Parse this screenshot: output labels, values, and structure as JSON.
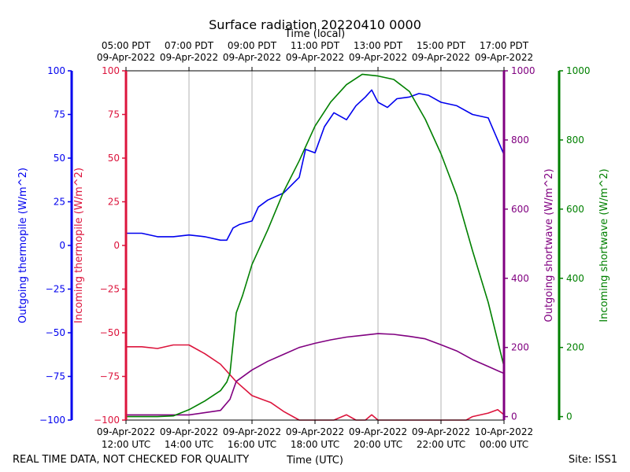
{
  "chart_data": {
    "type": "line",
    "title": "Surface radiation 20220410 0000",
    "top_xlabel": "Time (local)",
    "xlabel": "Time (UTC)",
    "footer_left": "REAL TIME DATA, NOT CHECKED FOR QUALITY",
    "footer_right": "Site: ISS1",
    "xlim": [
      12,
      24
    ],
    "grid": "vertical",
    "bottom_ticks": [
      {
        "x": 12,
        "line1": "09-Apr-2022",
        "line2": "12:00 UTC"
      },
      {
        "x": 14,
        "line1": "09-Apr-2022",
        "line2": "14:00 UTC"
      },
      {
        "x": 16,
        "line1": "09-Apr-2022",
        "line2": "16:00 UTC"
      },
      {
        "x": 18,
        "line1": "09-Apr-2022",
        "line2": "18:00 UTC"
      },
      {
        "x": 20,
        "line1": "09-Apr-2022",
        "line2": "20:00 UTC"
      },
      {
        "x": 22,
        "line1": "09-Apr-2022",
        "line2": "22:00 UTC"
      },
      {
        "x": 24,
        "line1": "10-Apr-2022",
        "line2": "00:00 UTC"
      }
    ],
    "top_ticks": [
      {
        "x": 12,
        "line1": "05:00 PDT",
        "line2": "09-Apr-2022"
      },
      {
        "x": 14,
        "line1": "07:00 PDT",
        "line2": "09-Apr-2022"
      },
      {
        "x": 16,
        "line1": "09:00 PDT",
        "line2": "09-Apr-2022"
      },
      {
        "x": 18,
        "line1": "11:00 PDT",
        "line2": "09-Apr-2022"
      },
      {
        "x": 20,
        "line1": "13:00 PDT",
        "line2": "09-Apr-2022"
      },
      {
        "x": 22,
        "line1": "15:00 PDT",
        "line2": "09-Apr-2022"
      },
      {
        "x": 24,
        "line1": "17:00 PDT",
        "line2": "09-Apr-2022"
      }
    ],
    "axes": [
      {
        "id": "outgoing_thermopile",
        "label": "Outgoing thermopile (W/m^2)",
        "color": "#0000ee",
        "ylim": [
          -100,
          100
        ],
        "ticks": [
          -100,
          -75,
          -50,
          -25,
          0,
          25,
          50,
          75,
          100
        ],
        "side": "left-outer"
      },
      {
        "id": "incoming_thermopile",
        "label": "Incoming thermopile (W/m^2)",
        "color": "#dc143c",
        "ylim": [
          -100,
          100
        ],
        "ticks": [
          -100,
          -75,
          -50,
          -25,
          0,
          25,
          50,
          75,
          100
        ],
        "side": "left-inner"
      },
      {
        "id": "outgoing_shortwave",
        "label": "Outgoing shortwave (W/m^2)",
        "color": "#800080",
        "ylim": [
          -10,
          1000
        ],
        "ticks": [
          0,
          200,
          400,
          600,
          800,
          1000
        ],
        "side": "right-inner"
      },
      {
        "id": "incoming_shortwave",
        "label": "Incoming shortwave (W/m^2)",
        "color": "#008000",
        "ylim": [
          -10,
          1000
        ],
        "ticks": [
          0,
          200,
          400,
          600,
          800,
          1000
        ],
        "side": "right-outer"
      }
    ],
    "series": [
      {
        "name": "Outgoing thermopile",
        "axis": "outgoing_thermopile",
        "color": "#0000ee",
        "x": [
          12,
          12.5,
          13,
          13.5,
          14,
          14.5,
          15,
          15.2,
          15.4,
          15.6,
          16,
          16.2,
          16.5,
          17,
          17.5,
          17.7,
          18,
          18.3,
          18.6,
          19,
          19.3,
          19.6,
          19.8,
          20,
          20.3,
          20.6,
          21,
          21.3,
          21.6,
          22,
          22.5,
          23,
          23.5,
          24
        ],
        "values": [
          7,
          7,
          5,
          5,
          6,
          5,
          3,
          3,
          10,
          12,
          14,
          22,
          26,
          30,
          39,
          55,
          53,
          68,
          76,
          72,
          80,
          85,
          89,
          82,
          79,
          84,
          85,
          87,
          86,
          82,
          80,
          75,
          73,
          52
        ]
      },
      {
        "name": "Incoming thermopile",
        "axis": "incoming_thermopile",
        "color": "#dc143c",
        "x": [
          12,
          12.5,
          13,
          13.5,
          14,
          14.5,
          15,
          15.5,
          16,
          16.3,
          16.6,
          17,
          17.5,
          17.8,
          18,
          18.3,
          18.6,
          19,
          19.3,
          19.6,
          19.8,
          20,
          21,
          22,
          22.8,
          23,
          23.5,
          23.8,
          24
        ],
        "values": [
          -58,
          -58,
          -59,
          -57,
          -57,
          -62,
          -68,
          -78,
          -86,
          -88,
          -90,
          -95,
          -100,
          -100,
          -100,
          -100,
          -100,
          -97,
          -100,
          -100,
          -97,
          -100,
          -100,
          -100,
          -100,
          -98,
          -96,
          -94,
          -97
        ]
      },
      {
        "name": "Outgoing shortwave",
        "axis": "outgoing_shortwave",
        "color": "#800080",
        "x": [
          12,
          13,
          14,
          15,
          15.3,
          15.5,
          16,
          16.5,
          17,
          17.5,
          18,
          18.5,
          19,
          19.5,
          20,
          20.5,
          21,
          21.5,
          22,
          22.5,
          23,
          23.5,
          24
        ],
        "values": [
          5,
          5,
          5,
          18,
          50,
          102,
          135,
          160,
          180,
          200,
          212,
          222,
          230,
          235,
          240,
          238,
          232,
          225,
          208,
          190,
          165,
          145,
          125
        ]
      },
      {
        "name": "Incoming shortwave",
        "axis": "incoming_shortwave",
        "color": "#008000",
        "x": [
          12,
          13,
          13.5,
          14,
          14.5,
          15,
          15.2,
          15.3,
          15.5,
          15.7,
          16,
          16.5,
          17,
          17.5,
          18,
          18.5,
          19,
          19.5,
          20,
          20.5,
          21,
          21.5,
          22,
          22.5,
          23,
          23.5,
          24
        ],
        "values": [
          0,
          0,
          2,
          20,
          45,
          75,
          100,
          125,
          300,
          350,
          440,
          540,
          650,
          740,
          840,
          910,
          960,
          990,
          985,
          975,
          940,
          860,
          760,
          640,
          480,
          330,
          145
        ]
      }
    ]
  }
}
